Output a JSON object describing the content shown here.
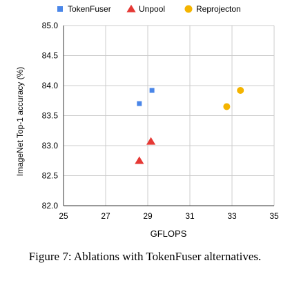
{
  "caption": "Figure 7: Ablations with TokenFuser alternatives.",
  "chart_data": {
    "type": "scatter",
    "xlabel": "GFLOPS",
    "ylabel": "ImageNet Top-1 accuracy (%)",
    "xlim": [
      25,
      35
    ],
    "ylim": [
      82.0,
      85.0
    ],
    "x_ticks": [
      "25",
      "27",
      "29",
      "31",
      "33",
      "35"
    ],
    "y_ticks": [
      "82.0",
      "82.5",
      "83.0",
      "83.5",
      "84.0",
      "84.5",
      "85.0"
    ],
    "grid": true,
    "legend_position": "top",
    "series": [
      {
        "name": "TokenFuser",
        "marker": "square",
        "color": "#4a86e8",
        "points": [
          {
            "x": 28.6,
            "y": 83.7
          },
          {
            "x": 29.2,
            "y": 83.92
          }
        ]
      },
      {
        "name": "Unpool",
        "marker": "triangle",
        "color": "#e53935",
        "points": [
          {
            "x": 28.6,
            "y": 82.75
          },
          {
            "x": 29.15,
            "y": 83.07
          }
        ]
      },
      {
        "name": "Reprojecton",
        "marker": "circle",
        "color": "#f4b400",
        "points": [
          {
            "x": 32.75,
            "y": 83.65
          },
          {
            "x": 33.4,
            "y": 83.92
          }
        ]
      }
    ]
  }
}
